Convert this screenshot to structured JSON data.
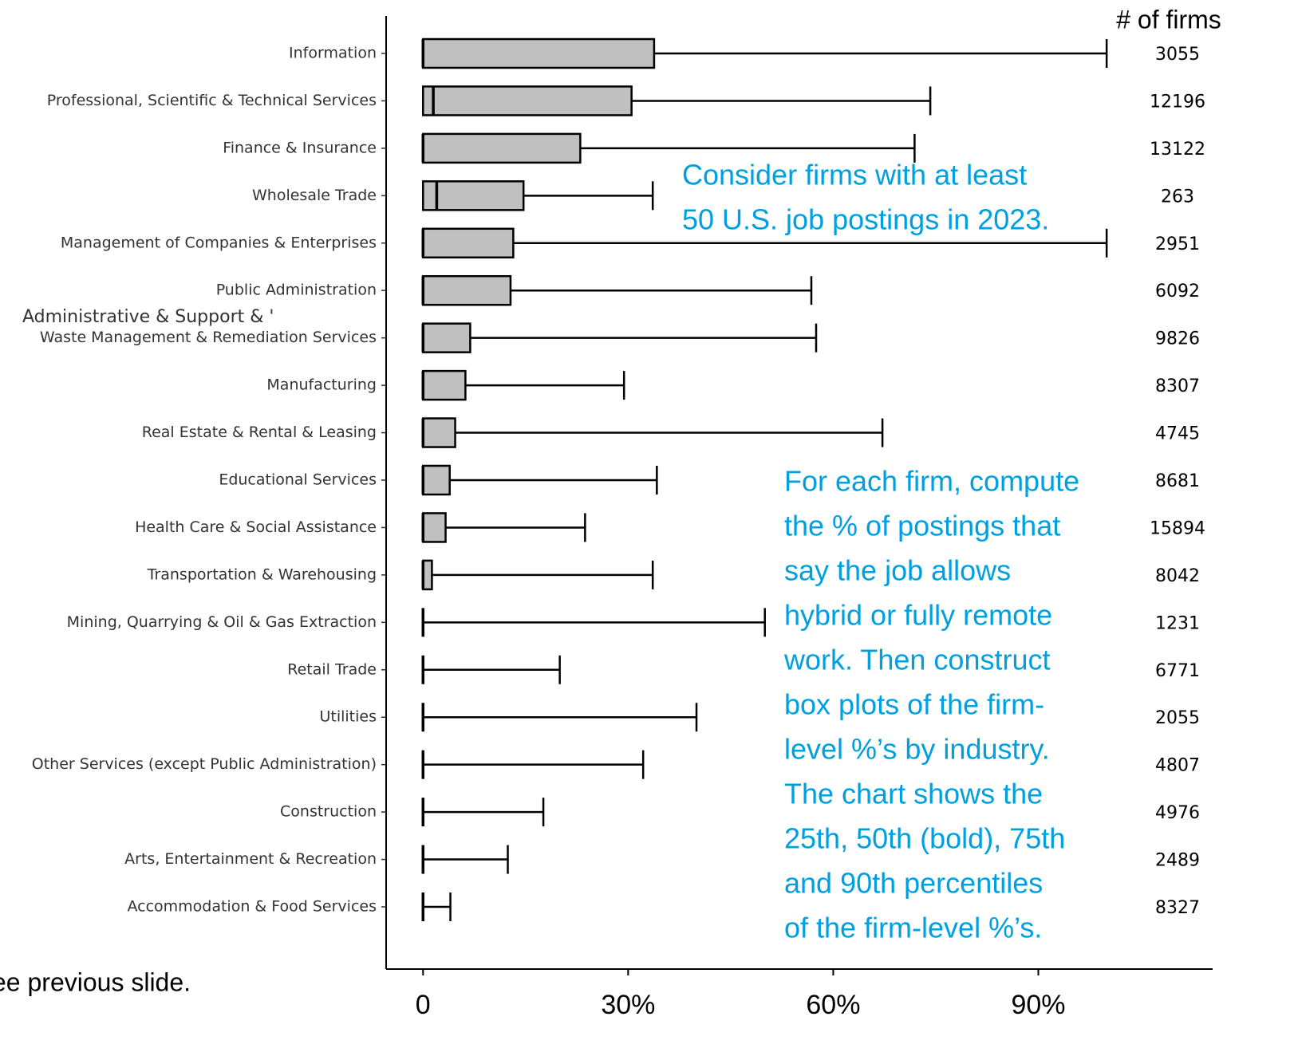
{
  "chart_data": {
    "type": "box",
    "count_header": "# of firms",
    "footnote": "ee previous slide.",
    "label_overlay": "Administrative & Support & '",
    "categories": [
      "Information",
      "Professional, Scientific & Technical Services",
      "Finance & Insurance",
      "Wholesale Trade",
      "Management of Companies & Enterprises",
      "Public Administration",
      "Waste Management & Remediation Services",
      "Manufacturing",
      "Real Estate & Rental & Leasing",
      "Educational Services",
      "Health Care & Social Assistance",
      "Transportation & Warehousing",
      "Mining, Quarrying & Oil & Gas Extraction",
      "Retail Trade",
      "Utilities",
      "Other Services (except Public Administration)",
      "Construction",
      "Arts, Entertainment & Recreation",
      "Accommodation & Food Services"
    ],
    "q1": [
      0,
      0,
      0,
      0,
      0,
      0,
      0,
      0,
      0,
      0,
      0,
      0,
      0,
      0,
      0,
      0,
      0,
      0,
      0
    ],
    "median": [
      0,
      1.5,
      0,
      2,
      0,
      0,
      0,
      0,
      0,
      0,
      0,
      0,
      0,
      0,
      0,
      0,
      0,
      0,
      0
    ],
    "q3": [
      33.8,
      30.5,
      23,
      14.7,
      13.2,
      12.8,
      6.9,
      6.2,
      4.7,
      3.9,
      3.3,
      1.3,
      0,
      0,
      0,
      0,
      0,
      0,
      0
    ],
    "p90": [
      100,
      74.2,
      71.9,
      33.6,
      100,
      56.8,
      57.5,
      29.4,
      67.2,
      34.2,
      23.7,
      33.6,
      50,
      20,
      40,
      32.2,
      17.6,
      12.4,
      4
    ],
    "firm_counts": [
      3055,
      12196,
      13122,
      263,
      2951,
      6092,
      9826,
      8307,
      4745,
      8681,
      15894,
      8042,
      1231,
      6771,
      2055,
      4807,
      4976,
      2489,
      8327
    ],
    "box_color": "#c0c0c0",
    "xlim": [
      -5.4,
      115.5
    ],
    "xticks": [
      0,
      {
        "value": 30,
        "label": "30%"
      },
      {
        "value": 60,
        "label": "60%"
      },
      {
        "value": 90,
        "label": "90%"
      }
    ],
    "annotations": [
      {
        "lines": [
          "Consider firms with at least",
          "50 U.S. job postings in 2023."
        ]
      },
      {
        "lines": [
          "For each firm, compute",
          "the % of postings that",
          "say the job allows",
          "hybrid or fully remote",
          "work. Then construct",
          "box plots of the firm-",
          "level %’s by industry.",
          "The chart shows the",
          "25th, 50th (bold), 75th",
          "and 90th percentiles",
          "of the firm-level %’s."
        ]
      }
    ]
  }
}
